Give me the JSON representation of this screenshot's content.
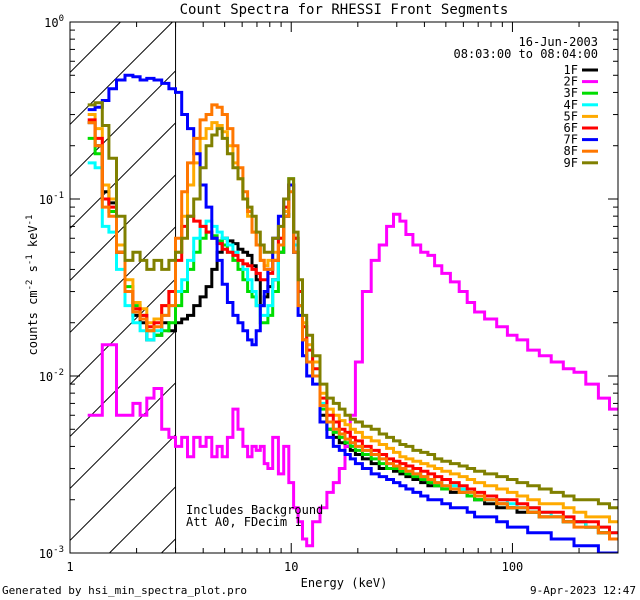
{
  "chart_data": {
    "type": "line",
    "title": "Count Spectra for RHESSI Front Segments",
    "xlabel": "Energy (keV)",
    "ylabel": "counts cm-2 s-1 keV-1",
    "xscale": "log",
    "yscale": "log",
    "xlim": [
      1.0,
      300.0
    ],
    "ylim": [
      0.001,
      1.0
    ],
    "x_ticks": [
      {
        "value": 1,
        "label": "1"
      },
      {
        "value": 10,
        "label": "10"
      },
      {
        "value": 100,
        "label": "100"
      }
    ],
    "y_ticks": [
      {
        "value": 1,
        "base": "10",
        "exp": "0"
      },
      {
        "value": 0.1,
        "base": "10",
        "exp": "-1"
      },
      {
        "value": 0.01,
        "base": "10",
        "exp": "-2"
      },
      {
        "value": 0.001,
        "base": "10",
        "exp": "-3"
      }
    ],
    "date": "16-Jun-2003",
    "time_range": "08:03:00 to 08:04:00",
    "hatched_region_max_kev": 3.0,
    "annotations": [
      "Includes Background",
      "Att A0, FDecim 1"
    ],
    "energies": [
      1.25,
      1.35,
      1.45,
      1.55,
      1.7,
      1.85,
      2.0,
      2.15,
      2.3,
      2.5,
      2.7,
      2.9,
      3.1,
      3.3,
      3.5,
      3.75,
      4.0,
      4.25,
      4.5,
      4.75,
      5.0,
      5.3,
      5.6,
      5.9,
      6.2,
      6.5,
      6.8,
      7.1,
      7.4,
      7.7,
      8.0,
      8.5,
      9.0,
      9.5,
      10.0,
      10.5,
      11.0,
      11.5,
      12.0,
      13.0,
      14.0,
      15.0,
      16.0,
      17.0,
      18.0,
      19.0,
      20.0,
      22.0,
      24.0,
      26.0,
      28.0,
      30.0,
      32.0,
      34.0,
      37.0,
      40.0,
      43.0,
      46.0,
      50.0,
      55.0,
      60.0,
      65.0,
      70.0,
      80.0,
      90.0,
      100.0,
      110.0,
      125.0,
      140.0,
      160.0,
      180.0,
      200.0,
      230.0,
      260.0,
      290.0
    ],
    "series": [
      {
        "name": "1F",
        "color": "#000000",
        "values": [
          0.27,
          0.2,
          0.11,
          0.095,
          0.05,
          0.03,
          0.022,
          0.02,
          0.016,
          0.017,
          0.02,
          0.018,
          0.02,
          0.021,
          0.022,
          0.025,
          0.028,
          0.032,
          0.04,
          0.05,
          0.06,
          0.058,
          0.056,
          0.052,
          0.05,
          0.048,
          0.042,
          0.035,
          0.025,
          0.028,
          0.032,
          0.035,
          0.05,
          0.08,
          0.12,
          0.05,
          0.025,
          0.016,
          0.012,
          0.01,
          0.006,
          0.005,
          0.0045,
          0.0042,
          0.004,
          0.0038,
          0.0036,
          0.0034,
          0.0032,
          0.003,
          0.003,
          0.0029,
          0.0028,
          0.0027,
          0.0026,
          0.0025,
          0.0024,
          0.0024,
          0.0023,
          0.0022,
          0.0022,
          0.0021,
          0.002,
          0.0019,
          0.0018,
          0.0018,
          0.0017,
          0.0017,
          0.0016,
          0.0016,
          0.0015,
          0.0015,
          0.0014,
          0.0013,
          0.0012
        ]
      },
      {
        "name": "2F",
        "color": "#ff00ff",
        "values": [
          0.006,
          0.006,
          0.015,
          0.015,
          0.006,
          0.006,
          0.007,
          0.006,
          0.0075,
          0.0085,
          0.005,
          0.0045,
          0.004,
          0.0045,
          0.0035,
          0.0045,
          0.004,
          0.0045,
          0.0035,
          0.004,
          0.0035,
          0.0045,
          0.0065,
          0.005,
          0.004,
          0.0035,
          0.004,
          0.0038,
          0.004,
          0.0032,
          0.003,
          0.0045,
          0.0028,
          0.004,
          0.0025,
          0.0018,
          0.0015,
          0.0012,
          0.0011,
          0.0015,
          0.0018,
          0.0022,
          0.0025,
          0.003,
          0.004,
          0.006,
          0.012,
          0.03,
          0.045,
          0.055,
          0.07,
          0.082,
          0.075,
          0.063,
          0.055,
          0.05,
          0.048,
          0.042,
          0.038,
          0.034,
          0.03,
          0.026,
          0.023,
          0.021,
          0.019,
          0.017,
          0.016,
          0.014,
          0.013,
          0.012,
          0.011,
          0.0105,
          0.009,
          0.0075,
          0.0065
        ]
      },
      {
        "name": "3F",
        "color": "#00dd00",
        "values": [
          0.22,
          0.18,
          0.1,
          0.085,
          0.05,
          0.032,
          0.025,
          0.022,
          0.018,
          0.017,
          0.018,
          0.02,
          0.025,
          0.03,
          0.04,
          0.05,
          0.06,
          0.065,
          0.062,
          0.058,
          0.055,
          0.05,
          0.045,
          0.04,
          0.035,
          0.03,
          0.028,
          0.025,
          0.02,
          0.02,
          0.022,
          0.03,
          0.05,
          0.08,
          0.13,
          0.06,
          0.025,
          0.016,
          0.012,
          0.01,
          0.0065,
          0.005,
          0.0048,
          0.0045,
          0.0042,
          0.004,
          0.0038,
          0.0036,
          0.0034,
          0.0032,
          0.003,
          0.003,
          0.0029,
          0.0028,
          0.0027,
          0.0026,
          0.0025,
          0.0024,
          0.0023,
          0.0023,
          0.0022,
          0.0021,
          0.002,
          0.002,
          0.0019,
          0.0018,
          0.0018,
          0.0017,
          0.0016,
          0.0016,
          0.0015,
          0.0015,
          0.0014,
          0.0013,
          0.0012
        ]
      },
      {
        "name": "4F",
        "color": "#00ffff",
        "values": [
          0.16,
          0.15,
          0.07,
          0.065,
          0.04,
          0.025,
          0.02,
          0.018,
          0.016,
          0.018,
          0.022,
          0.025,
          0.03,
          0.035,
          0.045,
          0.06,
          0.07,
          0.075,
          0.07,
          0.065,
          0.06,
          0.055,
          0.05,
          0.045,
          0.04,
          0.035,
          0.03,
          0.025,
          0.022,
          0.022,
          0.025,
          0.035,
          0.055,
          0.085,
          0.12,
          0.055,
          0.025,
          0.016,
          0.012,
          0.01,
          0.007,
          0.0055,
          0.005,
          0.0047,
          0.0044,
          0.0042,
          0.004,
          0.0038,
          0.0036,
          0.0034,
          0.0032,
          0.0031,
          0.003,
          0.0029,
          0.0028,
          0.0027,
          0.0026,
          0.0025,
          0.0024,
          0.0024,
          0.0023,
          0.0022,
          0.0021,
          0.002,
          0.002,
          0.0019,
          0.0018,
          0.0018,
          0.0017,
          0.0016,
          0.0016,
          0.0015,
          0.0014,
          0.0014,
          0.0013
        ]
      },
      {
        "name": "5F",
        "color": "#ffaa00",
        "values": [
          0.3,
          0.25,
          0.12,
          0.1,
          0.055,
          0.035,
          0.026,
          0.024,
          0.02,
          0.021,
          0.025,
          0.03,
          0.05,
          0.08,
          0.12,
          0.16,
          0.22,
          0.25,
          0.27,
          0.26,
          0.24,
          0.2,
          0.16,
          0.13,
          0.1,
          0.08,
          0.065,
          0.055,
          0.045,
          0.042,
          0.045,
          0.05,
          0.06,
          0.085,
          0.12,
          0.06,
          0.03,
          0.02,
          0.015,
          0.012,
          0.008,
          0.0065,
          0.006,
          0.0056,
          0.0053,
          0.005,
          0.0048,
          0.0045,
          0.0043,
          0.0041,
          0.0039,
          0.0037,
          0.0035,
          0.0034,
          0.0033,
          0.0032,
          0.0031,
          0.003,
          0.0029,
          0.0028,
          0.0027,
          0.0026,
          0.0025,
          0.0024,
          0.0023,
          0.0022,
          0.0021,
          0.002,
          0.0019,
          0.0019,
          0.0018,
          0.0017,
          0.0016,
          0.0016,
          0.0015
        ]
      },
      {
        "name": "6F",
        "color": "#ff0000",
        "values": [
          0.28,
          0.22,
          0.1,
          0.09,
          0.05,
          0.03,
          0.024,
          0.022,
          0.019,
          0.02,
          0.025,
          0.03,
          0.045,
          0.07,
          0.08,
          0.075,
          0.07,
          0.065,
          0.06,
          0.056,
          0.052,
          0.05,
          0.048,
          0.045,
          0.043,
          0.042,
          0.04,
          0.038,
          0.035,
          0.035,
          0.038,
          0.045,
          0.06,
          0.09,
          0.12,
          0.06,
          0.03,
          0.019,
          0.014,
          0.011,
          0.0075,
          0.006,
          0.0055,
          0.005,
          0.0048,
          0.0045,
          0.0043,
          0.004,
          0.0038,
          0.0036,
          0.0034,
          0.0033,
          0.0032,
          0.0031,
          0.003,
          0.0029,
          0.0028,
          0.0027,
          0.0026,
          0.0025,
          0.0024,
          0.0023,
          0.0022,
          0.0021,
          0.002,
          0.002,
          0.0019,
          0.0018,
          0.0017,
          0.0017,
          0.0016,
          0.0015,
          0.0015,
          0.0014,
          0.0013
        ]
      },
      {
        "name": "7F",
        "color": "#0000ff",
        "values": [
          0.32,
          0.33,
          0.36,
          0.42,
          0.47,
          0.5,
          0.49,
          0.47,
          0.48,
          0.47,
          0.45,
          0.42,
          0.4,
          0.3,
          0.25,
          0.18,
          0.12,
          0.09,
          0.06,
          0.045,
          0.033,
          0.026,
          0.022,
          0.02,
          0.018,
          0.016,
          0.015,
          0.018,
          0.025,
          0.03,
          0.04,
          0.06,
          0.08,
          0.1,
          0.12,
          0.05,
          0.022,
          0.013,
          0.01,
          0.009,
          0.0055,
          0.0045,
          0.004,
          0.0038,
          0.0036,
          0.0034,
          0.0032,
          0.003,
          0.0028,
          0.0027,
          0.0026,
          0.0025,
          0.0024,
          0.0023,
          0.0022,
          0.0021,
          0.002,
          0.002,
          0.0019,
          0.0018,
          0.0018,
          0.0017,
          0.0016,
          0.0016,
          0.0015,
          0.0014,
          0.0014,
          0.0013,
          0.0013,
          0.0012,
          0.0012,
          0.0011,
          0.0011,
          0.001,
          0.001
        ]
      },
      {
        "name": "8F",
        "color": "#ff7700",
        "values": [
          0.27,
          0.2,
          0.09,
          0.08,
          0.05,
          0.03,
          0.023,
          0.021,
          0.018,
          0.019,
          0.022,
          0.025,
          0.06,
          0.11,
          0.16,
          0.22,
          0.28,
          0.3,
          0.34,
          0.33,
          0.3,
          0.25,
          0.2,
          0.15,
          0.11,
          0.085,
          0.065,
          0.055,
          0.045,
          0.04,
          0.04,
          0.045,
          0.055,
          0.08,
          0.11,
          0.05,
          0.025,
          0.016,
          0.012,
          0.01,
          0.0068,
          0.0055,
          0.005,
          0.0047,
          0.0044,
          0.0042,
          0.004,
          0.0038,
          0.0036,
          0.0034,
          0.0032,
          0.0031,
          0.003,
          0.0029,
          0.0028,
          0.0027,
          0.0026,
          0.0025,
          0.0024,
          0.0023,
          0.0022,
          0.0022,
          0.0021,
          0.002,
          0.0019,
          0.0018,
          0.0018,
          0.0017,
          0.0016,
          0.0016,
          0.0015,
          0.0014,
          0.0014,
          0.0013,
          0.0012
        ]
      },
      {
        "name": "9F",
        "color": "#808000",
        "values": [
          0.34,
          0.35,
          0.26,
          0.17,
          0.08,
          0.045,
          0.05,
          0.045,
          0.04,
          0.045,
          0.04,
          0.045,
          0.05,
          0.06,
          0.08,
          0.1,
          0.15,
          0.2,
          0.23,
          0.25,
          0.22,
          0.18,
          0.15,
          0.13,
          0.1,
          0.09,
          0.08,
          0.065,
          0.055,
          0.05,
          0.05,
          0.06,
          0.07,
          0.1,
          0.13,
          0.065,
          0.035,
          0.022,
          0.017,
          0.013,
          0.009,
          0.0075,
          0.007,
          0.0065,
          0.006,
          0.0057,
          0.0055,
          0.0052,
          0.005,
          0.0047,
          0.0045,
          0.0043,
          0.0041,
          0.004,
          0.0038,
          0.0037,
          0.0036,
          0.0034,
          0.0033,
          0.0032,
          0.0031,
          0.003,
          0.0029,
          0.0028,
          0.0027,
          0.0026,
          0.0025,
          0.0024,
          0.0023,
          0.0022,
          0.0021,
          0.002,
          0.002,
          0.0019,
          0.0018
        ]
      }
    ]
  },
  "footer": {
    "generated_by": "Generated by hsi_min_spectra_plot.pro",
    "timestamp": "9-Apr-2023 12:47"
  }
}
